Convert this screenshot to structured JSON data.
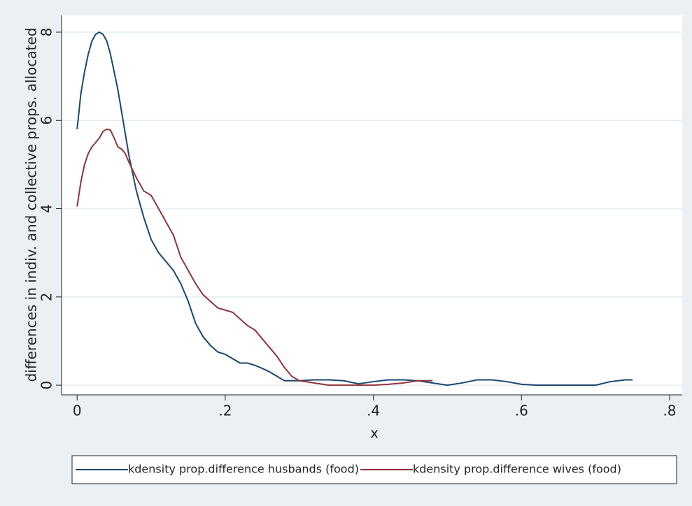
{
  "chart_data": {
    "type": "line",
    "x_label": "x",
    "y_label": "differences in indiv. and collective props. allocated",
    "xlim": [
      -0.021,
      0.817
    ],
    "ylim": [
      -0.22,
      8.38
    ],
    "xticks": [
      0,
      {
        "value": 0.2,
        "label": ".2"
      },
      {
        "value": 0.4,
        "label": ".4"
      },
      {
        "value": 0.6,
        "label": ".6"
      },
      {
        "value": 0.8,
        "label": ".8"
      }
    ],
    "yticks": [
      0,
      2,
      4,
      6,
      8
    ],
    "grid": true,
    "legend": "bottom",
    "series": [
      {
        "name": "kdensity prop.difference husbands (food)",
        "color": "#1a476f",
        "x": [
          0,
          0.005,
          0.01,
          0.015,
          0.02,
          0.025,
          0.03,
          0.035,
          0.04,
          0.045,
          0.05,
          0.055,
          0.06,
          0.065,
          0.07,
          0.08,
          0.09,
          0.1,
          0.11,
          0.12,
          0.13,
          0.14,
          0.15,
          0.16,
          0.17,
          0.18,
          0.19,
          0.2,
          0.21,
          0.22,
          0.23,
          0.24,
          0.25,
          0.26,
          0.27,
          0.28,
          0.3,
          0.32,
          0.34,
          0.36,
          0.38,
          0.4,
          0.42,
          0.44,
          0.46,
          0.48,
          0.5,
          0.52,
          0.54,
          0.56,
          0.58,
          0.6,
          0.62,
          0.66,
          0.7,
          0.72,
          0.74,
          0.75
        ],
        "values": [
          5.8,
          6.6,
          7.1,
          7.5,
          7.8,
          7.95,
          8.0,
          7.95,
          7.8,
          7.5,
          7.1,
          6.7,
          6.2,
          5.7,
          5.2,
          4.4,
          3.8,
          3.3,
          3.0,
          2.8,
          2.6,
          2.3,
          1.9,
          1.4,
          1.1,
          0.9,
          0.75,
          0.7,
          0.6,
          0.5,
          0.5,
          0.45,
          0.38,
          0.3,
          0.2,
          0.1,
          0.1,
          0.12,
          0.12,
          0.1,
          0.03,
          0.08,
          0.12,
          0.12,
          0.1,
          0.05,
          0,
          0.05,
          0.12,
          0.12,
          0.08,
          0.02,
          0,
          0,
          0,
          0.08,
          0.12,
          0.12
        ]
      },
      {
        "name": "kdensity prop.difference wives (food)",
        "color": "#90353b",
        "x": [
          0,
          0.005,
          0.01,
          0.015,
          0.02,
          0.025,
          0.03,
          0.035,
          0.04,
          0.045,
          0.05,
          0.055,
          0.06,
          0.065,
          0.07,
          0.08,
          0.09,
          0.1,
          0.11,
          0.12,
          0.13,
          0.14,
          0.15,
          0.16,
          0.17,
          0.18,
          0.19,
          0.2,
          0.21,
          0.22,
          0.23,
          0.24,
          0.25,
          0.26,
          0.27,
          0.28,
          0.29,
          0.3,
          0.32,
          0.34,
          0.36,
          0.38,
          0.4,
          0.42,
          0.44,
          0.46,
          0.48
        ],
        "values": [
          4.05,
          4.6,
          5.0,
          5.25,
          5.4,
          5.5,
          5.6,
          5.75,
          5.8,
          5.78,
          5.6,
          5.4,
          5.35,
          5.25,
          5.05,
          4.7,
          4.4,
          4.3,
          4.0,
          3.7,
          3.4,
          2.9,
          2.6,
          2.3,
          2.05,
          1.9,
          1.75,
          1.7,
          1.65,
          1.5,
          1.35,
          1.25,
          1.05,
          0.85,
          0.65,
          0.4,
          0.2,
          0.1,
          0.05,
          0,
          0,
          0,
          0,
          0.02,
          0.05,
          0.1,
          0.1
        ]
      }
    ]
  }
}
